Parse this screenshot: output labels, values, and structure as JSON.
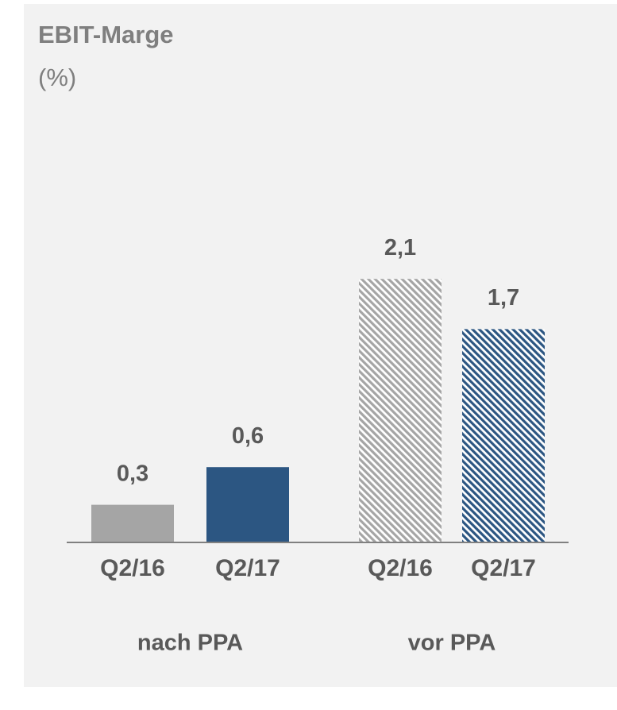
{
  "chart_data": {
    "type": "bar",
    "title": "EBIT-Marge",
    "subtitle": "(%)",
    "groups": [
      {
        "name": "nach PPA",
        "hatched": false,
        "categories": [
          "Q2/16",
          "Q2/17"
        ],
        "values": [
          0.3,
          0.6
        ],
        "value_labels": [
          "0,3",
          "0,6"
        ],
        "colors": [
          "#a5a5a5",
          "#2c5682"
        ]
      },
      {
        "name": "vor PPA",
        "hatched": true,
        "categories": [
          "Q2/16",
          "Q2/17"
        ],
        "values": [
          2.1,
          1.7
        ],
        "value_labels": [
          "2,1",
          "1,7"
        ],
        "colors": [
          "#a5a5a5",
          "#2c5682"
        ]
      }
    ]
  }
}
